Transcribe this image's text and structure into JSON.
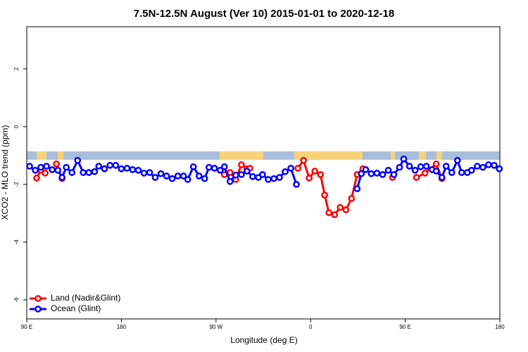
{
  "chart_data": {
    "type": "line",
    "title": "7.5N-12.5N August (Ver 10)   2015-01-01 to 2020-12-18",
    "x_label": "Longitude (deg E)",
    "y_label": "XCO2 - MLO trend (ppm)",
    "xlim": [
      90,
      540
    ],
    "ylim": [
      -6.66,
      3.46
    ],
    "xticks": [
      {
        "value": 90,
        "label": "90 E"
      },
      180,
      {
        "value": 270,
        "label": "90 W"
      },
      {
        "value": 360,
        "label": "0"
      },
      {
        "value": 450,
        "label": "90 E"
      },
      {
        "value": 540,
        "label": "180"
      }
    ],
    "yticks": [
      -6,
      -4,
      -2,
      0,
      2
    ],
    "grid": false,
    "legend_position": "bottom-left",
    "series": [
      {
        "name": "Land (Nadir&Glint)",
        "color": "#ff0000",
        "x": [
          99.4,
          103.4,
          107.5,
          null,
          118.2,
          123.6,
          null,
          278.0,
          283.4,
          288.8,
          294.2,
          299.5,
          302.2,
          null,
          347.9,
          353.3,
          358.6,
          364.0,
          369.4,
          373.4,
          377.4,
          382.8,
          388.2,
          393.6,
          398.9,
          404.3,
          409.7,
          null,
          437.9,
          null,
          460.7,
          468.8,
          479.5,
          484.9
        ],
        "values": [
          -1.78,
          -1.51,
          -1.61,
          null,
          -1.29,
          -1.8,
          null,
          -1.66,
          -1.59,
          -1.83,
          -1.32,
          -1.46,
          -1.44,
          null,
          -1.44,
          -1.17,
          -1.78,
          -1.54,
          -1.66,
          -2.37,
          -2.98,
          -3.05,
          -2.8,
          -2.88,
          -2.49,
          -1.66,
          -1.46,
          null,
          -1.76,
          null,
          -1.76,
          -1.61,
          -1.29,
          -1.8
        ]
      },
      {
        "name": "Ocean (Glint)",
        "color": "#0000ff",
        "x": [
          92.7,
          98.1,
          103.4,
          108.8,
          114.2,
          119.6,
          123.6,
          127.6,
          133.0,
          138.4,
          143.7,
          149.1,
          154.5,
          158.5,
          163.9,
          169.2,
          174.6,
          180.0,
          185.4,
          190.7,
          196.1,
          201.5,
          206.9,
          212.2,
          217.6,
          223.0,
          228.3,
          233.7,
          239.1,
          243.1,
          248.5,
          253.9,
          259.2,
          263.3,
          268.6,
          274.0,
          278.0,
          283.4,
          288.8,
          294.2,
          299.5,
          304.9,
          310.3,
          314.3,
          319.7,
          325.1,
          330.4,
          335.8,
          341.2,
          346.5,
          null,
          404.3,
          408.3,
          412.4,
          417.7,
          423.1,
          428.5,
          433.9,
          439.2,
          444.6,
          448.6,
          454.0,
          459.4,
          464.7,
          470.1,
          475.5,
          479.5,
          484.9,
          488.9,
          494.3,
          499.7,
          503.7,
          509.1,
          513.1,
          518.5,
          523.9,
          529.2,
          534.6,
          539.5
        ],
        "values": [
          -1.37,
          -1.51,
          -1.41,
          -1.37,
          -1.49,
          -1.51,
          -1.76,
          -1.41,
          -1.59,
          -1.17,
          -1.59,
          -1.59,
          -1.56,
          -1.37,
          -1.46,
          -1.34,
          -1.34,
          -1.46,
          -1.44,
          -1.49,
          -1.51,
          -1.61,
          -1.59,
          -1.76,
          -1.63,
          -1.71,
          -1.8,
          -1.71,
          -1.71,
          -1.83,
          -1.39,
          -1.71,
          -1.8,
          -1.41,
          -1.44,
          -1.51,
          -1.39,
          -1.9,
          -1.68,
          -1.66,
          -1.54,
          -1.73,
          -1.76,
          -1.66,
          -1.83,
          -1.8,
          -1.76,
          -1.56,
          -1.44,
          -2.0,
          null,
          -2.15,
          -1.63,
          -1.49,
          -1.63,
          -1.61,
          -1.66,
          -1.51,
          -1.66,
          -1.41,
          -1.12,
          -1.37,
          -1.51,
          -1.39,
          -1.37,
          -1.49,
          -1.54,
          -1.76,
          -1.37,
          -1.59,
          -1.17,
          -1.59,
          -1.59,
          -1.51,
          -1.37,
          -1.41,
          -1.32,
          -1.34,
          -1.46
        ]
      }
    ]
  }
}
